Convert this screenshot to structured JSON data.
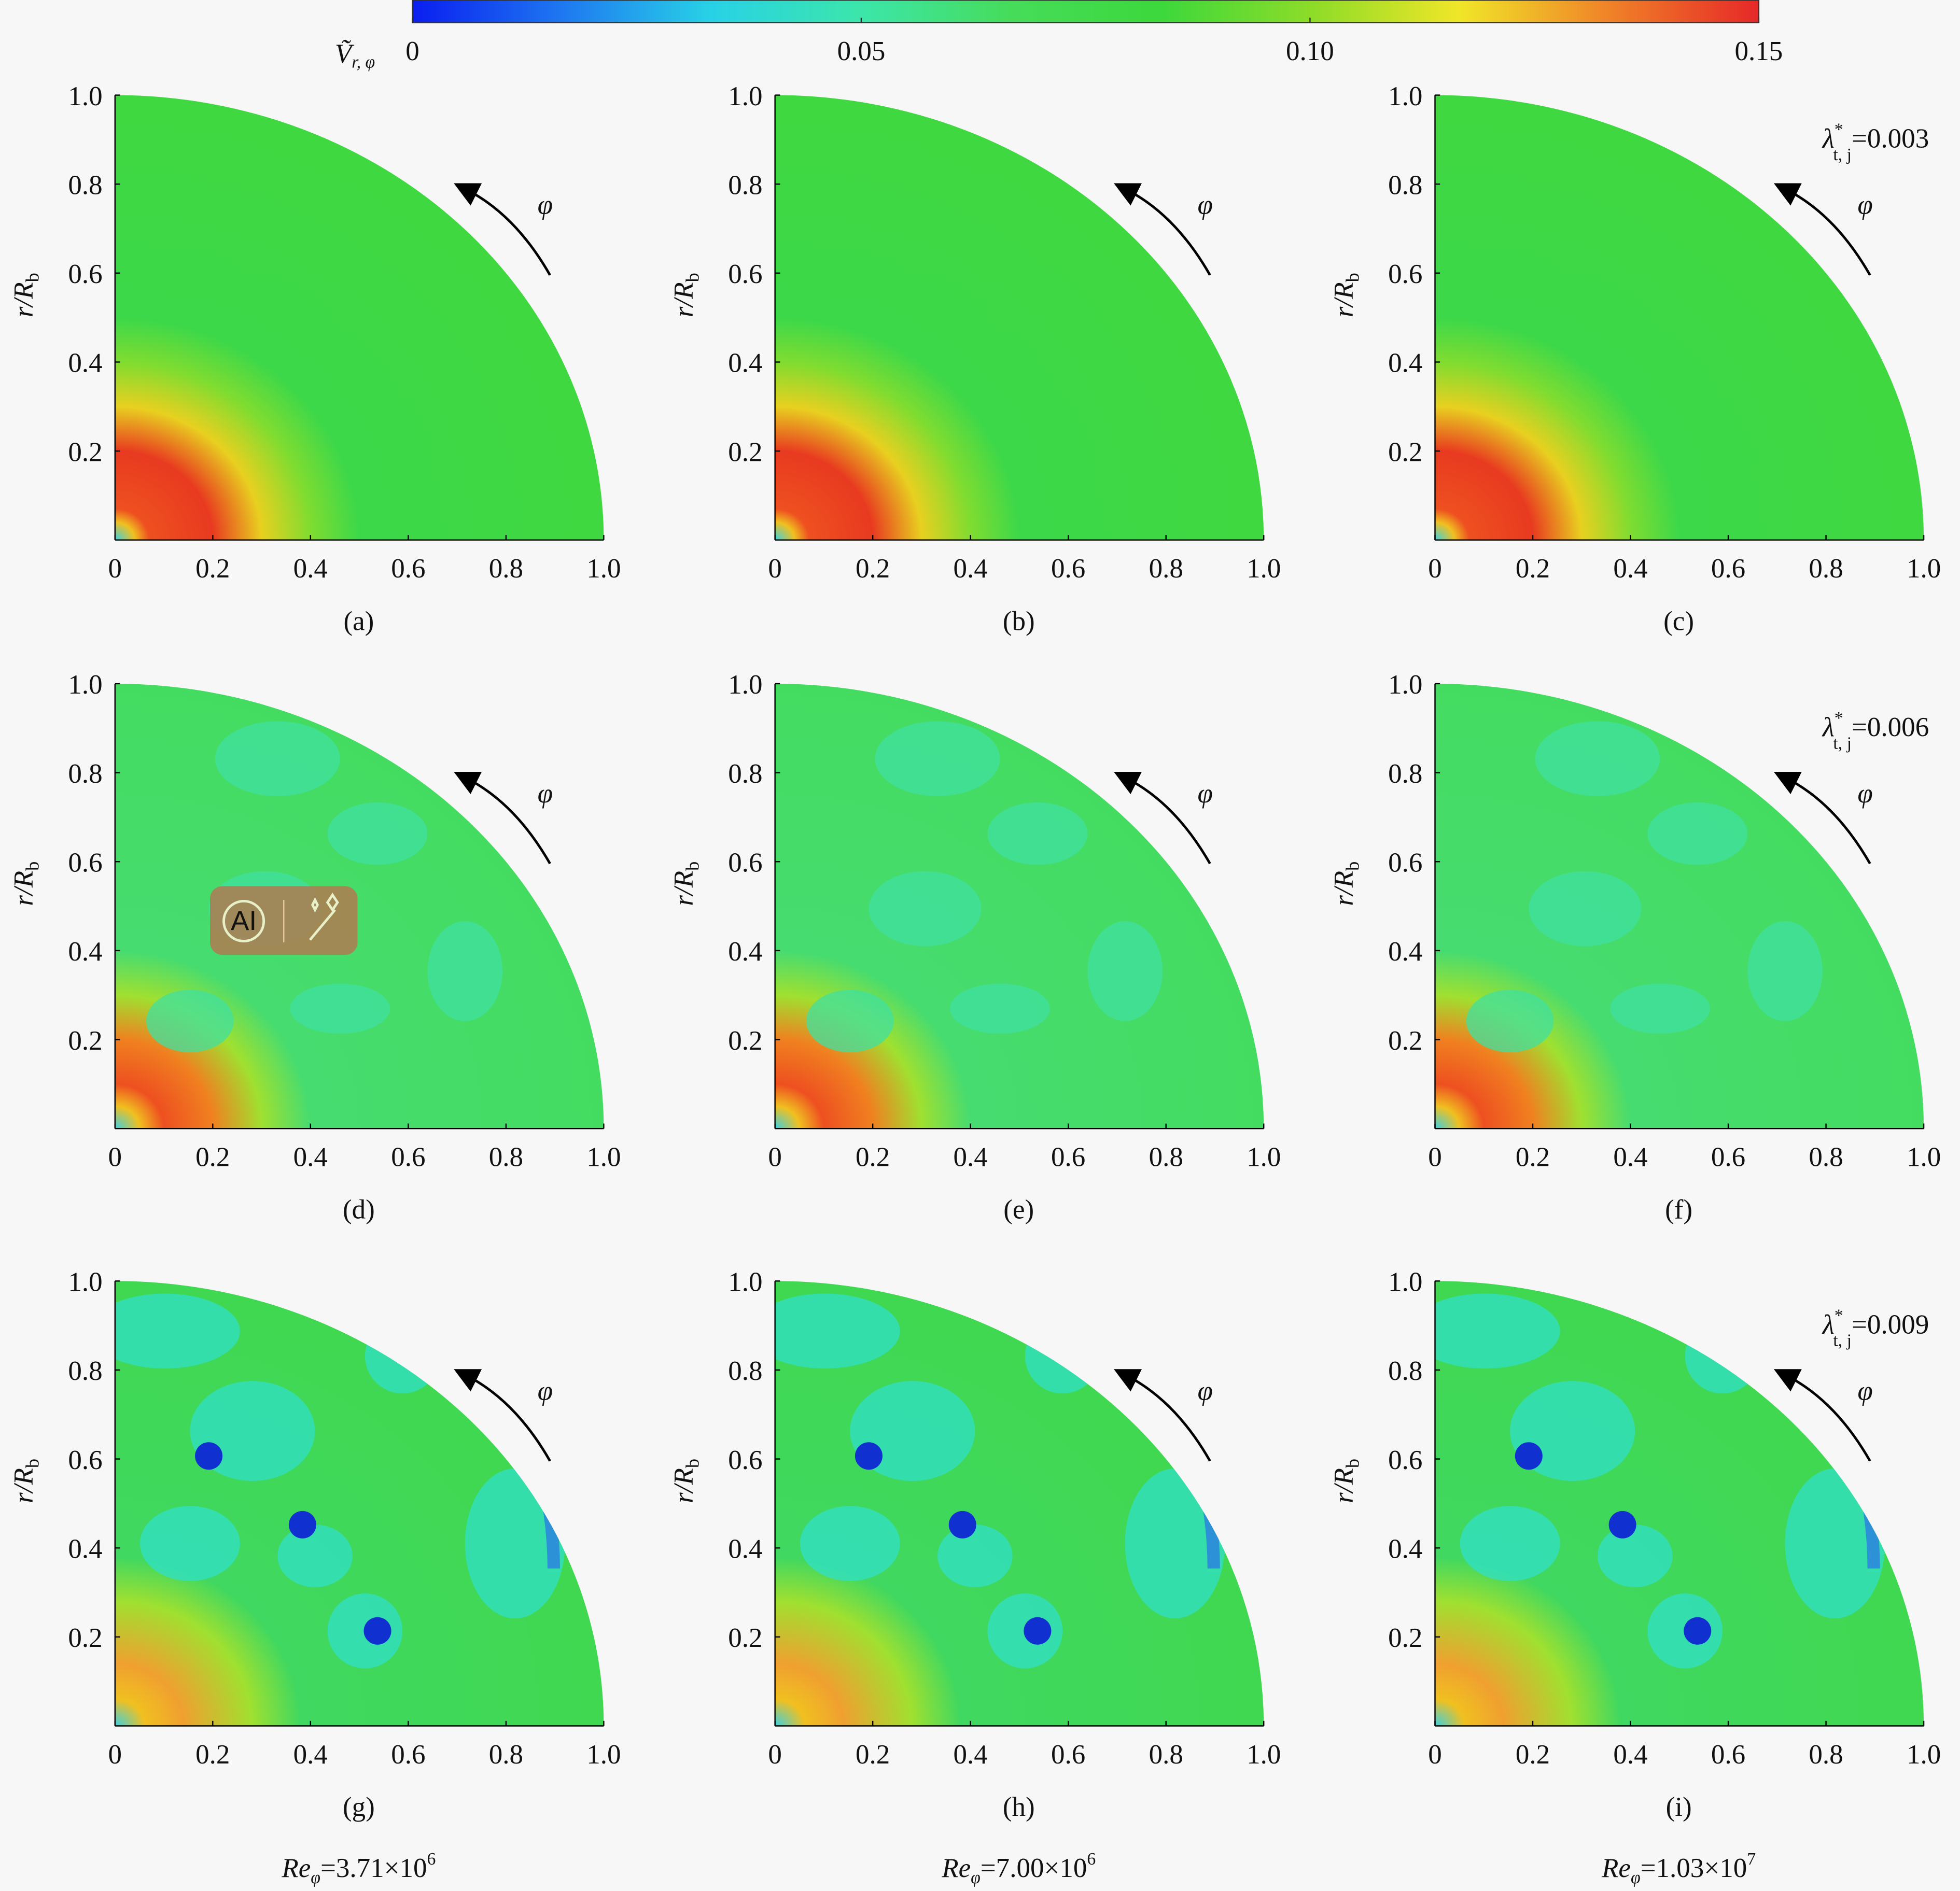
{
  "colorbar": {
    "label": "Ṽ",
    "label_sub": "r, φ",
    "lim": [
      0,
      0.15
    ],
    "ticks": [
      0,
      0.05,
      {
        "value": 0.1,
        "label": "0.10"
      },
      0.15
    ],
    "colormap": [
      "#0a1ef0",
      "#1e78f0",
      "#28d2e6",
      "#3ce6aa",
      "#46dc5a",
      "#3cd83c",
      "#8cdc28",
      "#f0e628",
      "#f08228",
      "#e62828"
    ]
  },
  "axes": {
    "xlim": [
      0,
      1
    ],
    "ylim": [
      0,
      1
    ],
    "xticks": [
      0,
      0.2,
      0.4,
      0.6,
      0.8,
      {
        "value": 1,
        "label": "1.0"
      }
    ],
    "yticks": [
      0.2,
      0.4,
      0.6,
      0.8,
      {
        "value": 1,
        "label": "1.0"
      }
    ],
    "ylabel": "r/R",
    "ylabel_sub": "b",
    "arrow_label": "φ"
  },
  "panels": [
    {
      "label": "(a)"
    },
    {
      "label": "(b)"
    },
    {
      "label": "(c)"
    },
    {
      "label": "(d)"
    },
    {
      "label": "(e)"
    },
    {
      "label": "(f)"
    },
    {
      "label": "(g)"
    },
    {
      "label": "(h)"
    },
    {
      "label": "(i)"
    }
  ],
  "rows": [
    {
      "symbol": "λ",
      "sup": "*",
      "sub": "t, j",
      "value": "=0.003"
    },
    {
      "symbol": "λ",
      "sup": "*",
      "sub": "t, j",
      "value": "=0.006"
    },
    {
      "symbol": "λ",
      "sup": "*",
      "sub": "t, j",
      "value": "=0.009"
    }
  ],
  "columns": [
    {
      "symbol": "Re",
      "sub": "φ",
      "value": "=3.71×10",
      "exp": "6"
    },
    {
      "symbol": "Re",
      "sub": "φ",
      "value": "=7.00×10",
      "exp": "6"
    },
    {
      "symbol": "Re",
      "sub": "φ",
      "value": "=1.03×10",
      "exp": "7"
    }
  ],
  "overlay": {
    "label": "AI"
  }
}
